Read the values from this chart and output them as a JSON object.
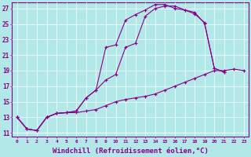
{
  "background_color": "#b3e8e8",
  "grid_color": "#ffffff",
  "line_color": "#880088",
  "xlabel": "Windchill (Refroidissement éolien,°C)",
  "xlabel_fontsize": 6.5,
  "ylabel_ticks": [
    11,
    13,
    15,
    17,
    19,
    21,
    23,
    25,
    27
  ],
  "xticks": [
    0,
    1,
    2,
    3,
    4,
    5,
    6,
    7,
    8,
    9,
    10,
    11,
    12,
    13,
    14,
    15,
    16,
    17,
    18,
    19,
    20,
    21,
    22,
    23
  ],
  "xlim": [
    -0.5,
    23.5
  ],
  "ylim": [
    10.5,
    27.8
  ],
  "line1_x": [
    0,
    1,
    2,
    3,
    4,
    5,
    6,
    7,
    8,
    9,
    10,
    11,
    12,
    13,
    14,
    15,
    16,
    17,
    18,
    19,
    20,
    21,
    22,
    23
  ],
  "line1_y": [
    13.0,
    11.5,
    11.3,
    13.0,
    13.5,
    13.6,
    13.6,
    13.8,
    14.0,
    14.5,
    15.0,
    15.3,
    15.5,
    15.7,
    16.0,
    16.5,
    17.0,
    17.5,
    18.0,
    18.5,
    19.0,
    19.0,
    19.2,
    19.0
  ],
  "line2_x": [
    0,
    1,
    2,
    3,
    4,
    5,
    6,
    7,
    8,
    9,
    10,
    11,
    12,
    13,
    14,
    15,
    16,
    17,
    18,
    19,
    20,
    21,
    22,
    23
  ],
  "line2_y": [
    13.0,
    11.5,
    11.3,
    13.0,
    13.5,
    13.6,
    13.8,
    15.5,
    16.5,
    17.8,
    18.5,
    22.0,
    22.5,
    26.0,
    27.0,
    27.3,
    27.3,
    26.8,
    26.5,
    25.1,
    19.3,
    18.8,
    null,
    null
  ],
  "line3_x": [
    0,
    1,
    2,
    3,
    4,
    5,
    6,
    7,
    8,
    9,
    10,
    11,
    12,
    13,
    14,
    15,
    16,
    17,
    18,
    19,
    20,
    21,
    22,
    23
  ],
  "line3_y": [
    13.0,
    11.5,
    11.3,
    13.0,
    13.5,
    13.6,
    13.8,
    15.5,
    16.5,
    22.0,
    22.3,
    25.5,
    26.2,
    26.8,
    27.5,
    27.5,
    27.0,
    26.8,
    26.3,
    25.2,
    19.3,
    18.8,
    null,
    null
  ]
}
